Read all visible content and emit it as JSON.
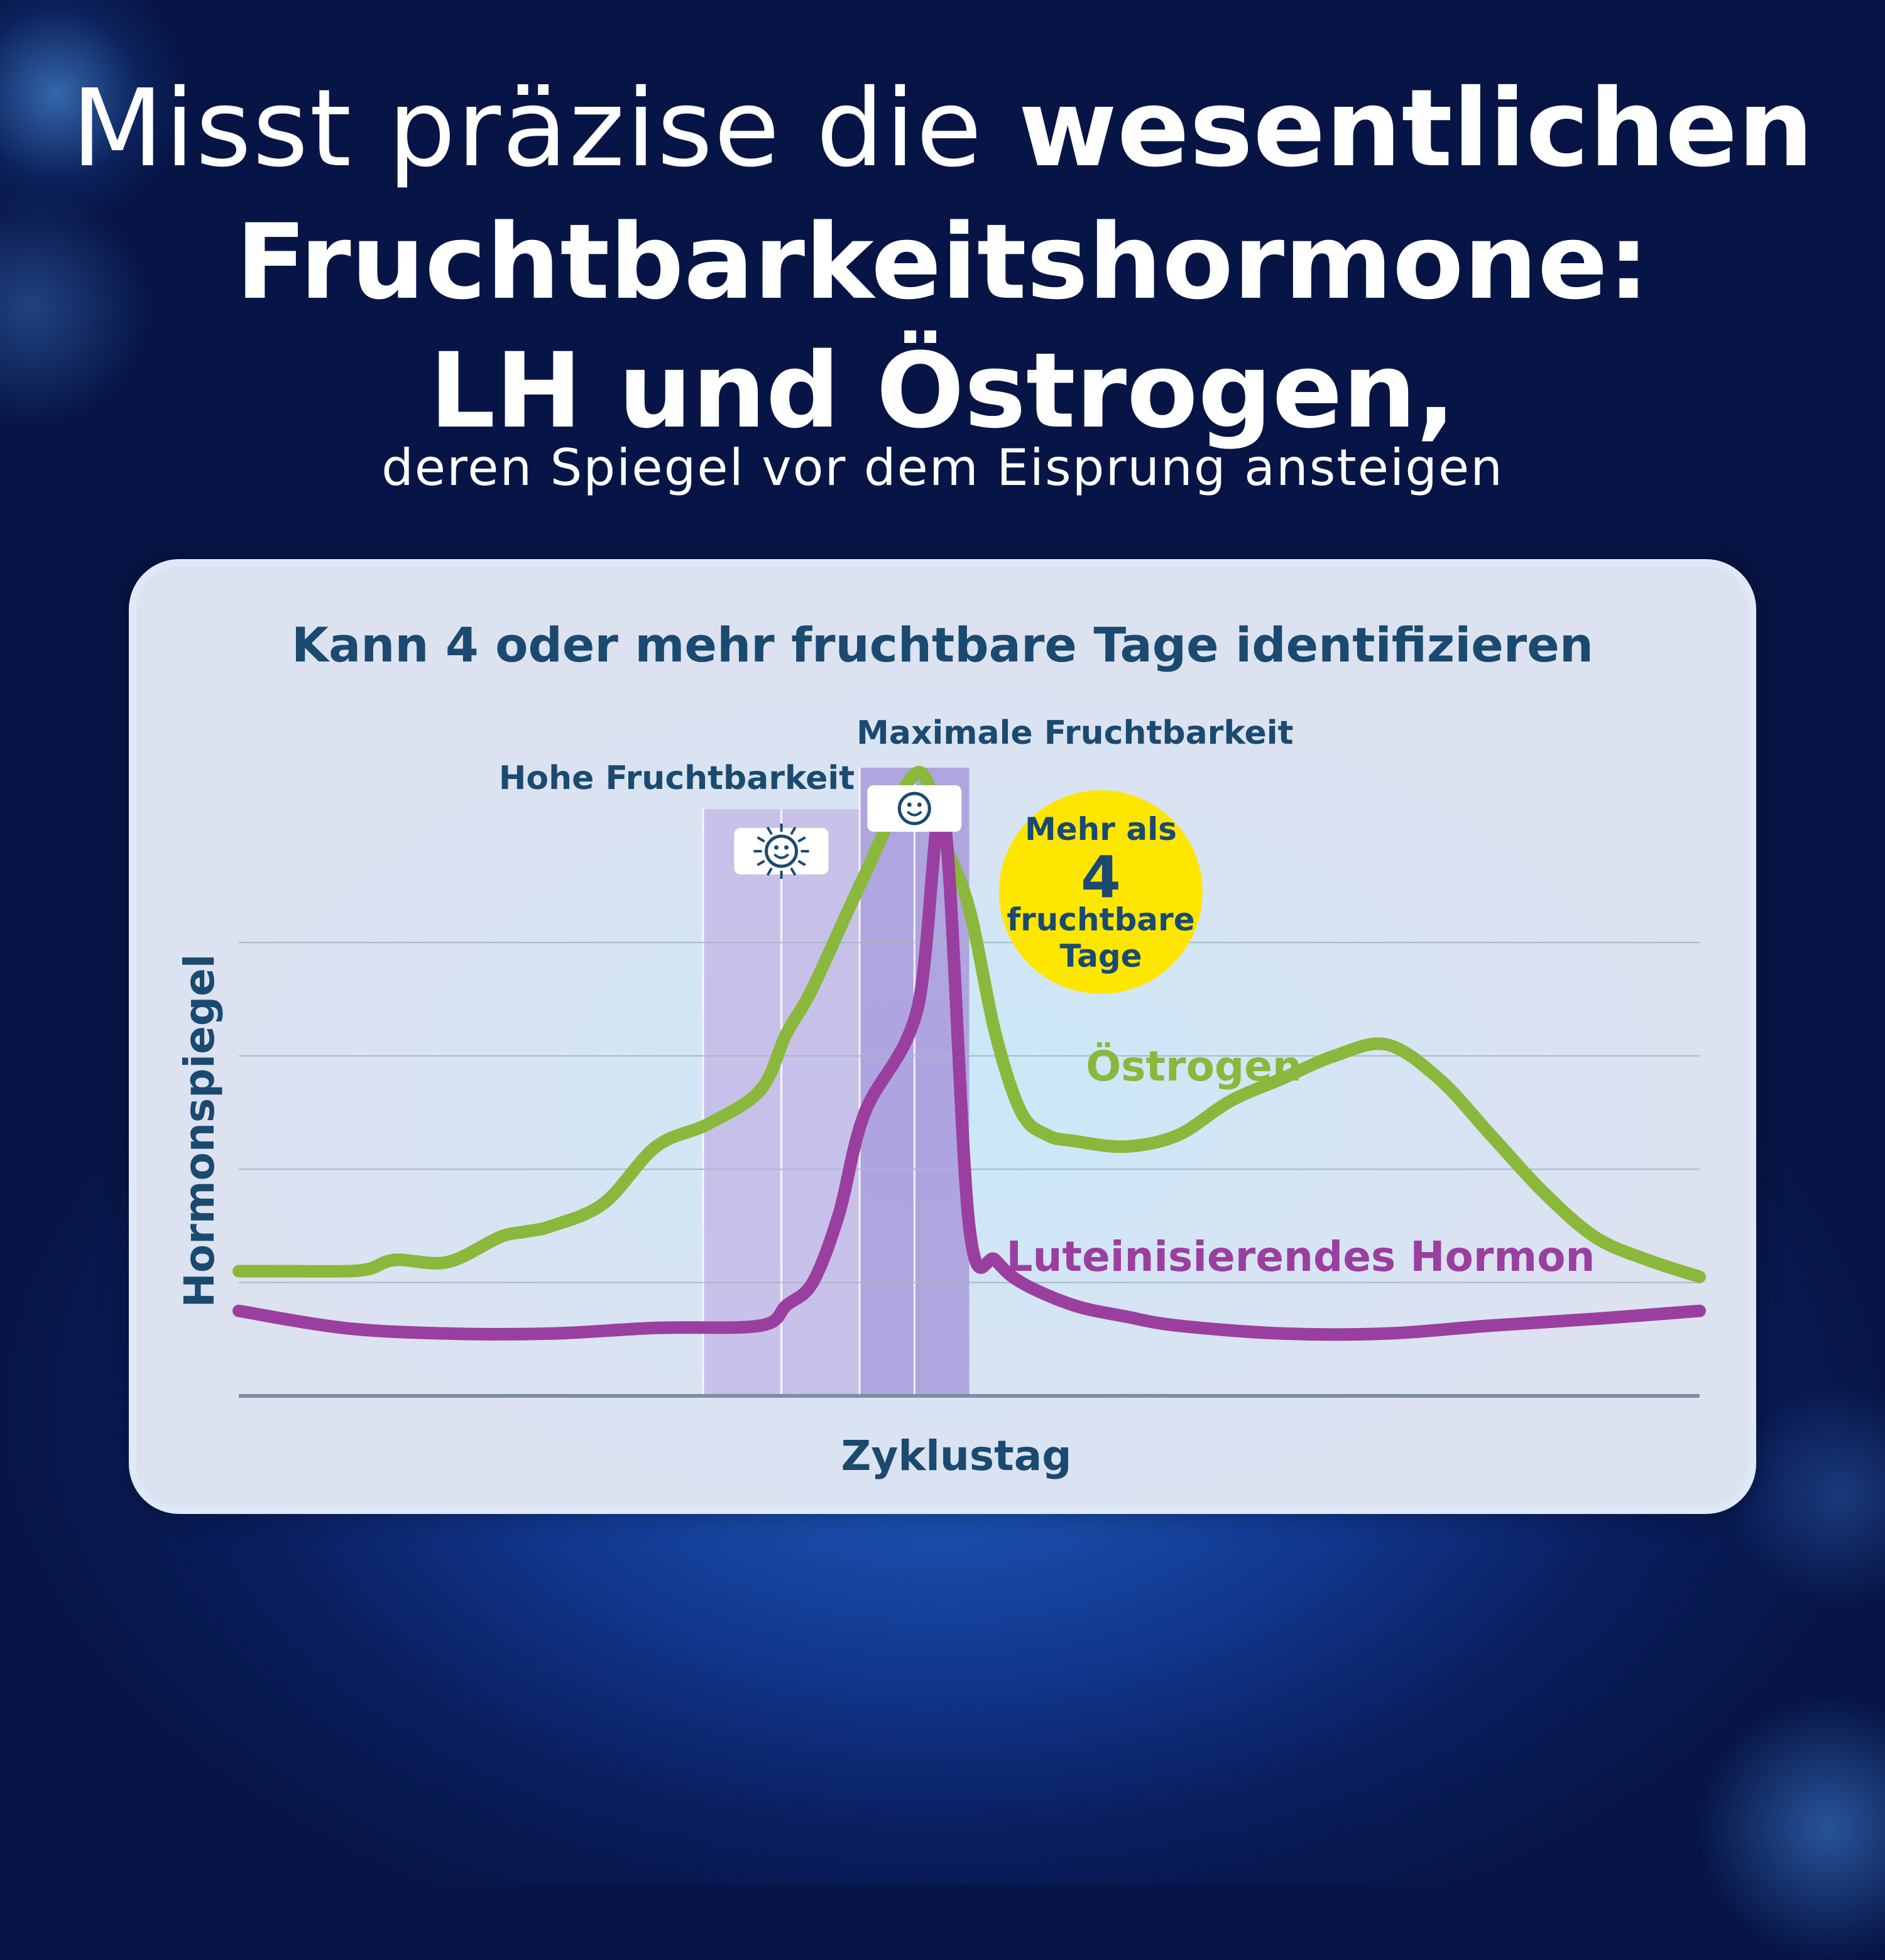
{
  "headline": {
    "line1_light": "Misst präzise die ",
    "line1_bold": "wesentlichen",
    "line2": "Fruchtbarkeitshormone:",
    "line3": "LH und Östrogen,",
    "line4": "deren Spiegel vor dem Eisprung ansteigen"
  },
  "colors": {
    "estrogen": "#8ab83c",
    "lh": "#9a3fa0",
    "title_text": "#1b4a70",
    "badge": "#ffe600",
    "band_high": "#c4b8e6",
    "band_max": "#ab9ddd"
  },
  "chart_data": {
    "type": "line",
    "title": "Kann 4 oder mehr fruchtbare Tage identifizieren",
    "xlabel": "Zyklustag",
    "ylabel": "Hormonspiegel",
    "grid": true,
    "xlim": [
      0,
      28
    ],
    "ylim": [
      0,
      5
    ],
    "series": [
      {
        "name": "Östrogen",
        "x": [
          0,
          1,
          2,
          2.5,
          3,
          4,
          5,
          5.5,
          6,
          7,
          8,
          9,
          10,
          10.5,
          11,
          12,
          13,
          13.5,
          14,
          14.5,
          15,
          15.5,
          16,
          17,
          18,
          19,
          20,
          21,
          22,
          23,
          24,
          25,
          26,
          27,
          28
        ],
        "y": [
          1.1,
          1.1,
          1.1,
          1.12,
          1.2,
          1.18,
          1.4,
          1.45,
          1.5,
          1.7,
          2.2,
          2.4,
          2.7,
          3.2,
          3.6,
          4.6,
          5.5,
          4.9,
          4.3,
          3.2,
          2.5,
          2.3,
          2.25,
          2.2,
          2.3,
          2.6,
          2.8,
          3.0,
          3.1,
          2.8,
          2.3,
          1.8,
          1.4,
          1.2,
          1.05
        ]
      },
      {
        "name": "Luteinisierendes Hormon",
        "x": [
          0,
          2,
          4,
          6,
          8,
          10,
          10.5,
          11,
          11.5,
          12,
          13,
          13.5,
          14,
          14.5,
          15,
          16,
          17,
          18,
          20,
          22,
          24,
          26,
          28
        ],
        "y": [
          0.75,
          0.6,
          0.55,
          0.55,
          0.6,
          0.62,
          0.8,
          1.0,
          1.6,
          2.5,
          3.4,
          5.15,
          1.5,
          1.2,
          1.0,
          0.8,
          0.7,
          0.62,
          0.55,
          0.55,
          0.62,
          0.68,
          0.75
        ]
      }
    ],
    "bands": [
      {
        "label": "Hohe Fruchtbarkeit",
        "x_start": 8.9,
        "x_end": 11.9,
        "days": 2,
        "icon": "sun-smiley-icon"
      },
      {
        "label": "Maximale Fruchtbarkeit",
        "x_start": 11.9,
        "x_end": 14.0,
        "days": 2,
        "icon": "smiley-icon"
      }
    ],
    "annotations": {
      "estrogen_label": "Östrogen",
      "lh_label": "Luteinisierendes Hormon",
      "badge": {
        "line1": "Mehr als",
        "number": "4",
        "line3": "fruchtbare",
        "line4": "Tage"
      }
    }
  }
}
